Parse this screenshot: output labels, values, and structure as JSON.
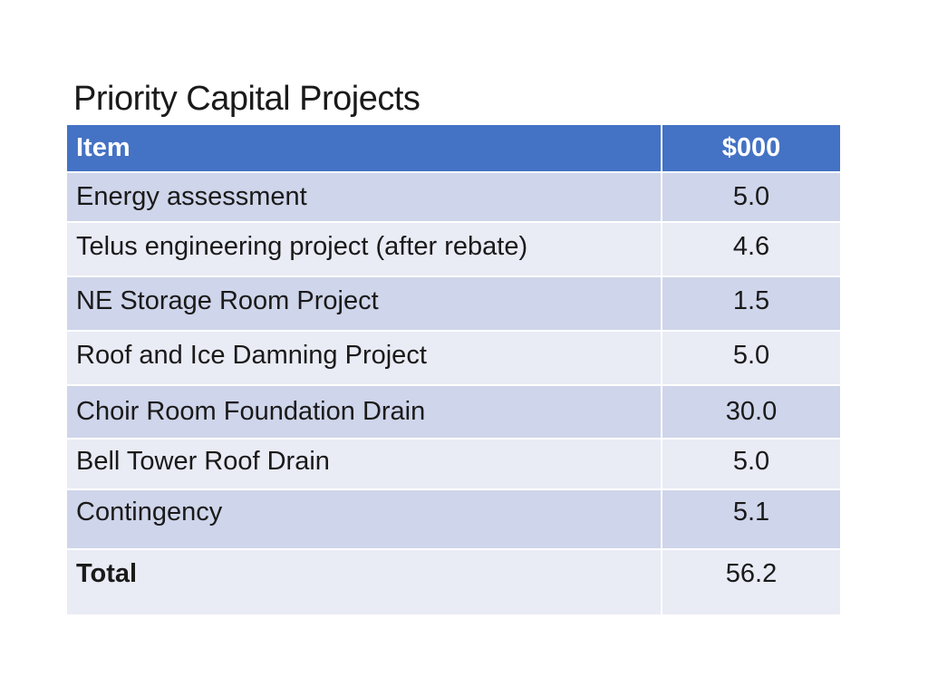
{
  "title": "Priority Capital Projects",
  "table": {
    "headers": [
      "Item",
      "$000"
    ],
    "rows": [
      {
        "item": "Energy assessment",
        "value": "5.0"
      },
      {
        "item": "Telus engineering project (after rebate)",
        "value": "4.6"
      },
      {
        "item": "NE Storage Room Project",
        "value": "1.5"
      },
      {
        "item": "Roof and Ice Damning Project",
        "value": "5.0"
      },
      {
        "item": "Choir Room Foundation Drain",
        "value": "30.0"
      },
      {
        "item": "Bell Tower Roof Drain",
        "value": "5.0"
      },
      {
        "item": "Contingency",
        "value": "5.1"
      }
    ],
    "total": {
      "label": "Total",
      "value": "56.2"
    }
  },
  "colors": {
    "header_bg": "#4472c4",
    "row_dark": "#cfd5ea",
    "row_light": "#e9ebf5"
  }
}
